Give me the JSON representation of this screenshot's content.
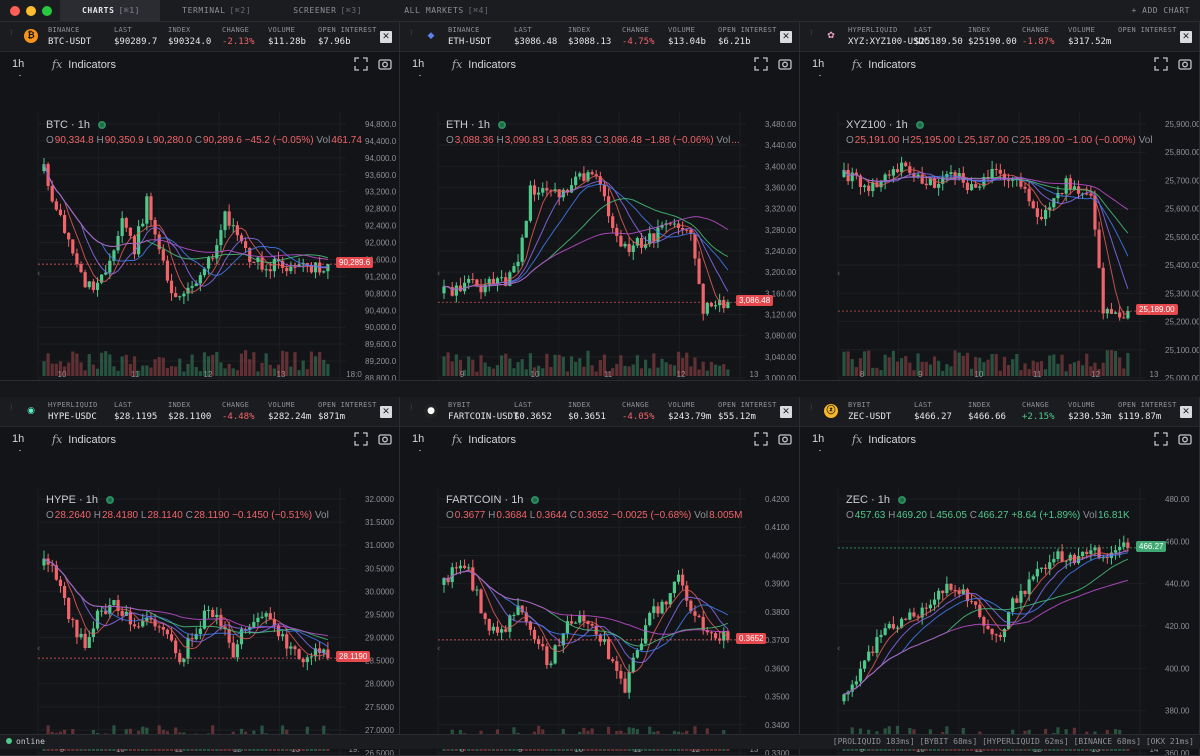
{
  "tabs": [
    {
      "label": "CHARTS",
      "kb": "[⌘1]"
    },
    {
      "label": "TERMINAL",
      "kb": "[⌘2]"
    },
    {
      "label": "SCREENER",
      "kb": "[⌘3]"
    },
    {
      "label": "ALL MARKETS",
      "kb": "[⌘4]"
    }
  ],
  "add_chart": "+ ADD CHART",
  "colors": {
    "up": "#4fc88b",
    "down": "#f0646a",
    "bg": "#131417",
    "accent": "#e6e8ec"
  },
  "panels": [
    {
      "exchange": "BINANCE",
      "symbol": "BTC-USDT",
      "logo": "btc-logo",
      "logo_text": "₿",
      "logo_color": "#f7931a",
      "last": "$90289.7",
      "index": "$90324.0",
      "change": "-2.13%",
      "volume": "$11.28b",
      "oi": "$7.96b",
      "tf": "1h",
      "indicators": "Indicators",
      "ctitle": "BTC · 1h",
      "o": "90,334.8",
      "h": "90,350.9",
      "l": "90,280.0",
      "c": "90,289.6",
      "chg": "−45.2 (−0.05%)",
      "vol": "461.74",
      "price_tag": "90,289.6",
      "dir": "down",
      "y_ticks": [
        "94,800.0",
        "94,400.0",
        "94,000.0",
        "93,600.0",
        "93,200.0",
        "92,800.0",
        "92,400.0",
        "92,000.0",
        "91,600.0",
        "91,200.0",
        "90,800.0",
        "90,400.0",
        "90,000.0",
        "89,600.0",
        "89,200.0",
        "88,800.0"
      ],
      "x_ticks": [
        "10",
        "11",
        "12",
        "13",
        "18:0"
      ]
    },
    {
      "exchange": "BINANCE",
      "symbol": "ETH-USDT",
      "logo": "eth-logo",
      "logo_text": "◆",
      "logo_color": "#627eea",
      "last": "$3086.48",
      "index": "$3088.13",
      "change": "-4.75%",
      "volume": "$13.04b",
      "oi": "$6.21b",
      "tf": "1h",
      "indicators": "Indicators",
      "ctitle": "ETH · 1h",
      "o": "3,088.36",
      "h": "3,090.83",
      "l": "3,085.83",
      "c": "3,086.48",
      "chg": "−1.88 (−0.06%)",
      "vol": "...",
      "price_tag": "3,086.48",
      "dir": "down",
      "y_ticks": [
        "3,480.00",
        "3,440.00",
        "3,400.00",
        "3,360.00",
        "3,320.00",
        "3,280.00",
        "3,240.00",
        "3,200.00",
        "3,160.00",
        "3,120.00",
        "3,080.00",
        "3,040.00",
        "3,000.00"
      ],
      "x_ticks": [
        "9",
        "10",
        "11",
        "12",
        "13"
      ]
    },
    {
      "exchange": "HYPERLIQUID",
      "symbol": "XYZ:XYZ100-USDC",
      "logo": "flower-logo",
      "logo_text": "✿",
      "logo_color": "#f3a6c8",
      "last": "$25189.50",
      "index": "$25190.00",
      "change": "-1.87%",
      "volume": "$317.52m",
      "oi": "",
      "tf": "1h",
      "indicators": "Indicators",
      "ctitle": "XYZ100 · 1h",
      "o": "25,191.00",
      "h": "25,195.00",
      "l": "25,187.00",
      "c": "25,189.00",
      "chg": "−1.00 (−0.00%)",
      "vol": "",
      "price_tag": "25,189.00",
      "dir": "down",
      "y_ticks": [
        "25,900.00",
        "25,800.00",
        "25,700.00",
        "25,600.00",
        "25,500.00",
        "25,400.00",
        "25,300.00",
        "25,200.00",
        "25,100.00",
        "25,000.00"
      ],
      "x_ticks": [
        "8",
        "9",
        "10",
        "11",
        "12",
        "13"
      ]
    },
    {
      "exchange": "HYPERLIQUID",
      "symbol": "HYPE-USDC",
      "logo": "hype-logo",
      "logo_text": "◉",
      "logo_color": "#5ff0c8",
      "last": "$28.1195",
      "index": "$28.1100",
      "change": "-4.48%",
      "volume": "$282.24m",
      "oi": "$871m",
      "tf": "1h",
      "indicators": "Indicators",
      "ctitle": "HYPE · 1h",
      "o": "28.2640",
      "h": "28.4180",
      "l": "28.1140",
      "c": "28.1190",
      "chg": "−0.1450 (−0.51%)",
      "vol": "",
      "price_tag": "28.1190",
      "dir": "down",
      "y_ticks": [
        "32.0000",
        "31.5000",
        "31.0000",
        "30.5000",
        "30.0000",
        "29.5000",
        "29.0000",
        "28.5000",
        "28.0000",
        "27.5000",
        "27.0000",
        "26.5000"
      ],
      "x_ticks": [
        "9",
        "10",
        "11",
        "12",
        "13",
        "19:"
      ]
    },
    {
      "exchange": "BYBIT",
      "symbol": "FARTCOIN-USDT",
      "logo": "fartcoin-logo",
      "logo_text": "●",
      "logo_color": "#222",
      "last": "$0.3652",
      "index": "$0.3651",
      "change": "-4.05%",
      "volume": "$243.79m",
      "oi": "$55.12m",
      "tf": "1h",
      "indicators": "Indicators",
      "ctitle": "FARTCOIN · 1h",
      "o": "0.3677",
      "h": "0.3684",
      "l": "0.3644",
      "c": "0.3652",
      "chg": "−0.0025 (−0.68%)",
      "vol": "8.005M",
      "price_tag": "0.3652",
      "dir": "down",
      "y_ticks": [
        "0.4200",
        "0.4100",
        "0.4000",
        "0.3900",
        "0.3800",
        "0.3700",
        "0.3600",
        "0.3500",
        "0.3400",
        "0.3300"
      ],
      "x_ticks": [
        "8",
        "9",
        "10",
        "11",
        "12",
        "13"
      ]
    },
    {
      "exchange": "BYBIT",
      "symbol": "ZEC-USDT",
      "logo": "zec-logo",
      "logo_text": "ⓩ",
      "logo_color": "#f4b728",
      "last": "$466.27",
      "index": "$466.66",
      "change": "+2.15%",
      "volume": "$230.53m",
      "oi": "$119.87m",
      "tf": "1h",
      "indicators": "Indicators",
      "ctitle": "ZEC · 1h",
      "o": "457.63",
      "h": "469.20",
      "l": "456.05",
      "c": "466.27",
      "chg": "+8.64 (+1.89%)",
      "vol": "16.81K",
      "price_tag": "466.27",
      "dir": "up",
      "y_ticks": [
        "480.00",
        "460.00",
        "440.00",
        "420.00",
        "400.00",
        "380.00",
        "360.00"
      ],
      "x_ticks": [
        "9",
        "10",
        "11",
        "12",
        "13",
        "14"
      ]
    }
  ],
  "stat_labels": {
    "last": "LAST",
    "index": "INDEX",
    "change": "CHANGE",
    "volume": "VOLUME",
    "oi": "OPEN INTEREST"
  },
  "status": {
    "online": "online",
    "latency": "[PROLIQUID 183ms] [BYBIT 68ms] [HYPERLIQUID 62ms] [BINANCE 68ms] [OKX 21ms]"
  }
}
